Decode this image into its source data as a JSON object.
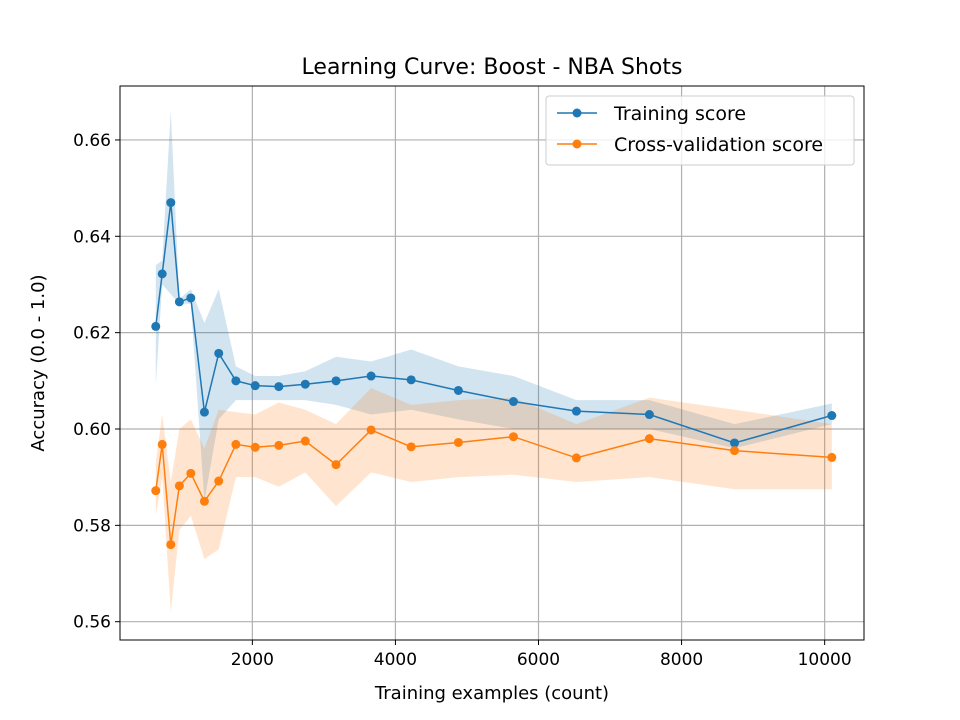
{
  "chart_data": {
    "type": "line",
    "title": "Learning Curve: Boost - NBA Shots",
    "xlabel": "Training examples (count)",
    "ylabel": "Accuracy (0.0 - 1.0)",
    "xlim": [
      150,
      10550
    ],
    "ylim": [
      0.5562,
      0.6712
    ],
    "x_ticks": [
      2000,
      4000,
      6000,
      8000,
      10000
    ],
    "y_ticks": [
      0.56,
      0.58,
      0.6,
      0.62,
      0.64,
      0.66
    ],
    "x_tick_labels": [
      "2000",
      "4000",
      "6000",
      "8000",
      "10000"
    ],
    "y_tick_labels": [
      "0.56",
      "0.58",
      "0.60",
      "0.62",
      "0.64",
      "0.66"
    ],
    "grid": true,
    "legend_position": "top-right",
    "x": [
      650,
      740,
      860,
      980,
      1140,
      1330,
      1530,
      1770,
      2040,
      2370,
      2740,
      3170,
      3660,
      4220,
      4880,
      5650,
      6530,
      7550,
      8740,
      10100
    ],
    "series": [
      {
        "name": "Training score",
        "color": "#1f77b4",
        "band_color": "#1f77b4",
        "values": [
          0.6213,
          0.6322,
          0.647,
          0.6264,
          0.6272,
          0.6035,
          0.6157,
          0.61,
          0.609,
          0.6088,
          0.6093,
          0.61,
          0.611,
          0.6102,
          0.608,
          0.6057,
          0.6037,
          0.603,
          0.5971,
          0.6028
        ],
        "lower": [
          0.609,
          0.63,
          0.628,
          0.626,
          0.626,
          0.585,
          0.602,
          0.606,
          0.606,
          0.606,
          0.606,
          0.605,
          0.603,
          0.604,
          0.602,
          0.6,
          0.6,
          0.6,
          0.596,
          0.601
        ],
        "upper": [
          0.634,
          0.635,
          0.666,
          0.627,
          0.629,
          0.622,
          0.629,
          0.613,
          0.611,
          0.611,
          0.612,
          0.615,
          0.614,
          0.6165,
          0.613,
          0.611,
          0.606,
          0.606,
          0.601,
          0.6053
        ]
      },
      {
        "name": "Cross-validation score",
        "color": "#ff7f0e",
        "band_color": "#ff7f0e",
        "values": [
          0.5872,
          0.5968,
          0.576,
          0.5882,
          0.5908,
          0.585,
          0.5892,
          0.5968,
          0.5962,
          0.5966,
          0.5975,
          0.5926,
          0.5998,
          0.5963,
          0.5972,
          0.5984,
          0.594,
          0.598,
          0.5955,
          0.5941
        ],
        "lower": [
          0.582,
          0.59,
          0.562,
          0.579,
          0.582,
          0.573,
          0.575,
          0.59,
          0.59,
          0.588,
          0.591,
          0.584,
          0.591,
          0.589,
          0.59,
          0.5905,
          0.589,
          0.59,
          0.5875,
          0.5875
        ],
        "upper": [
          0.593,
          0.603,
          0.589,
          0.6,
          0.602,
          0.596,
          0.604,
          0.6035,
          0.603,
          0.6055,
          0.604,
          0.601,
          0.6085,
          0.605,
          0.606,
          0.6065,
          0.601,
          0.6065,
          0.604,
          0.601
        ]
      }
    ]
  }
}
